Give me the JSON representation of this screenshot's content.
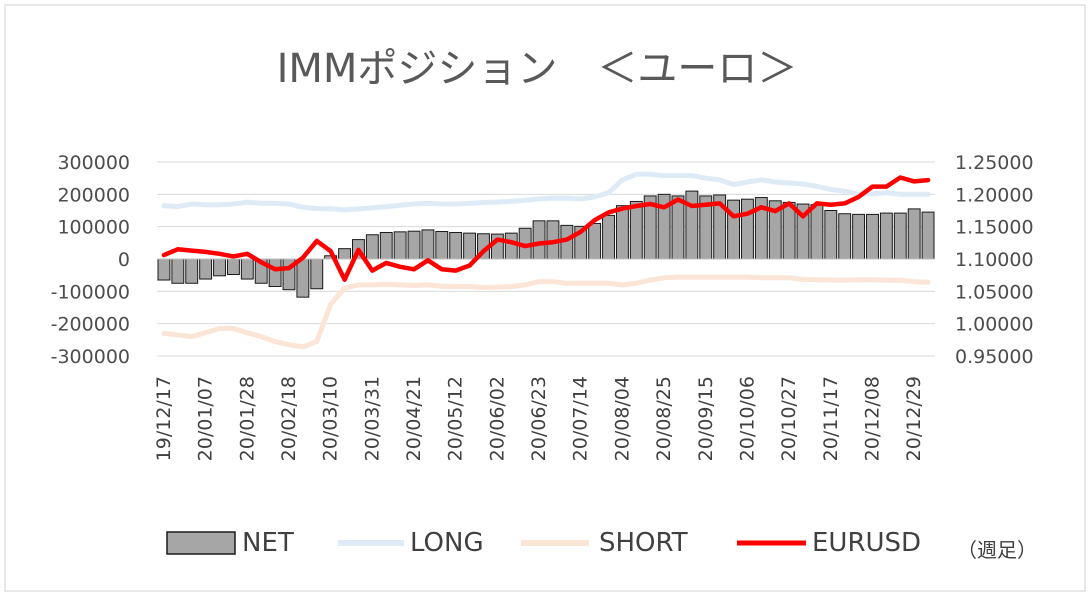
{
  "chart_data": {
    "type": "bar",
    "title": "IMMポジション　＜ユーロ＞",
    "note": "（週足）",
    "colors": {
      "net_fill": "#a6a6a6",
      "net_stroke": "#1a1a1a",
      "long": "#deebf7",
      "short": "#fbe5d6",
      "eurusd": "#ff0000",
      "grid": "#d9d9d9"
    },
    "y_left": {
      "min": -300000,
      "max": 300000,
      "ticks": [
        "300000",
        "200000",
        "100000",
        "0",
        "-100000",
        "-200000",
        "-300000"
      ]
    },
    "y_right": {
      "min": 0.95,
      "max": 1.25,
      "ticks": [
        "1.25000",
        "1.20000",
        "1.15000",
        "1.10000",
        "1.05000",
        "1.00000",
        "0.95000"
      ]
    },
    "x_tick_labels": [
      "19/12/17",
      "20/01/07",
      "20/01/28",
      "20/02/18",
      "20/03/10",
      "20/03/31",
      "20/04/21",
      "20/05/12",
      "20/06/02",
      "20/06/23",
      "20/07/14",
      "20/08/04",
      "20/08/25",
      "20/09/15",
      "20/10/06",
      "20/10/27",
      "20/11/17",
      "20/12/08",
      "20/12/29"
    ],
    "x_tick_every": 3,
    "weeks": 56,
    "series": [
      {
        "name": "NET",
        "type": "bar",
        "axis": "left",
        "values": [
          -65000,
          -75000,
          -75000,
          -62000,
          -52000,
          -48000,
          -62000,
          -75000,
          -85000,
          -95000,
          -118000,
          -92000,
          10000,
          32000,
          60000,
          75000,
          82000,
          84000,
          86000,
          90000,
          85000,
          82000,
          80000,
          78000,
          77000,
          80000,
          95000,
          118000,
          118000,
          104000,
          101000,
          110000,
          135000,
          165000,
          178000,
          195000,
          200000,
          195000,
          210000,
          195000,
          198000,
          182000,
          185000,
          190000,
          180000,
          175000,
          170000,
          168000,
          150000,
          140000,
          138000,
          138000,
          142000,
          142000,
          155000,
          145000
        ]
      },
      {
        "name": "LONG",
        "type": "line",
        "axis": "left",
        "values": [
          165000,
          162000,
          170000,
          168000,
          168000,
          170000,
          176000,
          172000,
          172000,
          170000,
          160000,
          156000,
          155000,
          152000,
          155000,
          158000,
          162000,
          166000,
          170000,
          172000,
          170000,
          170000,
          172000,
          175000,
          176000,
          178000,
          182000,
          186000,
          188000,
          188000,
          186000,
          192000,
          205000,
          245000,
          262000,
          262000,
          258000,
          258000,
          258000,
          250000,
          245000,
          230000,
          238000,
          245000,
          238000,
          235000,
          232000,
          225000,
          215000,
          210000,
          200000,
          202000,
          205000,
          200000,
          200000,
          200000
        ]
      },
      {
        "name": "SHORT",
        "type": "line",
        "axis": "left",
        "values": [
          -230000,
          -235000,
          -240000,
          -228000,
          -215000,
          -215000,
          -228000,
          -240000,
          -255000,
          -265000,
          -272000,
          -255000,
          -140000,
          -90000,
          -80000,
          -80000,
          -78000,
          -80000,
          -82000,
          -80000,
          -84000,
          -85000,
          -85000,
          -88000,
          -87000,
          -85000,
          -80000,
          -70000,
          -70000,
          -75000,
          -75000,
          -75000,
          -75000,
          -80000,
          -75000,
          -65000,
          -58000,
          -56000,
          -56000,
          -56000,
          -56000,
          -56000,
          -56000,
          -58000,
          -58000,
          -58000,
          -63000,
          -64000,
          -65000,
          -66000,
          -64000,
          -64000,
          -66000,
          -66000,
          -70000,
          -72000
        ]
      },
      {
        "name": "EURUSD",
        "type": "line",
        "axis": "right",
        "values": [
          1.106,
          1.115,
          1.113,
          1.111,
          1.108,
          1.104,
          1.108,
          1.095,
          1.084,
          1.086,
          1.102,
          1.128,
          1.112,
          1.068,
          1.114,
          1.082,
          1.094,
          1.088,
          1.084,
          1.098,
          1.084,
          1.082,
          1.09,
          1.112,
          1.13,
          1.126,
          1.12,
          1.124,
          1.126,
          1.13,
          1.142,
          1.16,
          1.172,
          1.178,
          1.182,
          1.185,
          1.18,
          1.192,
          1.182,
          1.184,
          1.186,
          1.166,
          1.17,
          1.18,
          1.174,
          1.186,
          1.166,
          1.186,
          1.184,
          1.186,
          1.196,
          1.212,
          1.212,
          1.226,
          1.22,
          1.222
        ]
      }
    ],
    "legend": {
      "position": "bottom",
      "entries": [
        "NET",
        "LONG",
        "SHORT",
        "EURUSD"
      ]
    },
    "grid": true
  }
}
